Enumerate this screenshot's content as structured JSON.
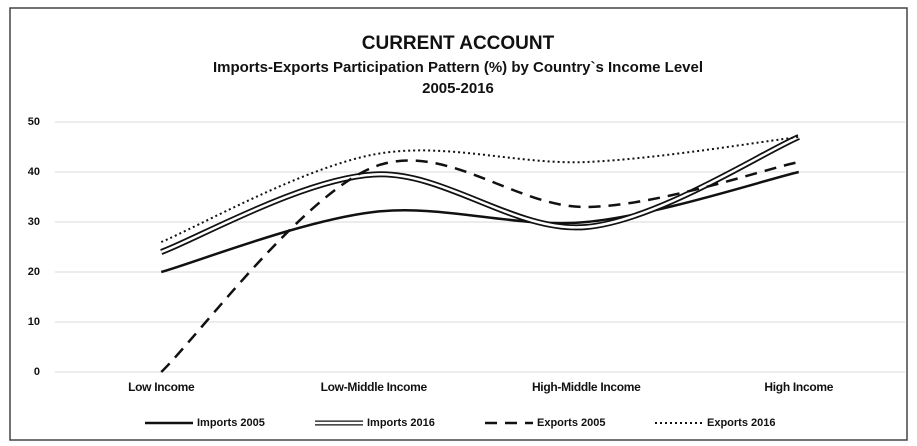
{
  "chart_data": {
    "type": "line",
    "title": "CURRENT ACCOUNT",
    "subtitle": [
      "Imports-Exports Participation Pattern  (%) by Country`s Income Level",
      "2005-2016"
    ],
    "categories": [
      "Low Income",
      "Low-Middle Income",
      "High-Middle Income",
      "High Income"
    ],
    "series": [
      {
        "name": "Imports 2005",
        "color": "#111111",
        "style": "solid",
        "values": [
          20,
          32,
          30,
          40
        ]
      },
      {
        "name": "Imports 2016",
        "color": "#111111",
        "style": "double",
        "values": [
          24,
          39.5,
          29,
          47
        ]
      },
      {
        "name": "Exports 2005",
        "color": "#111111",
        "style": "dashed",
        "values": [
          0,
          41,
          33,
          42
        ]
      },
      {
        "name": "Exports 2016",
        "color": "#111111",
        "style": "dotted",
        "values": [
          26,
          43.5,
          42,
          47
        ]
      }
    ],
    "ylim": [
      0,
      50
    ],
    "yticks": [
      0,
      10,
      20,
      30,
      40,
      50
    ],
    "grid": true,
    "smooth": true,
    "legend": "bottom"
  }
}
